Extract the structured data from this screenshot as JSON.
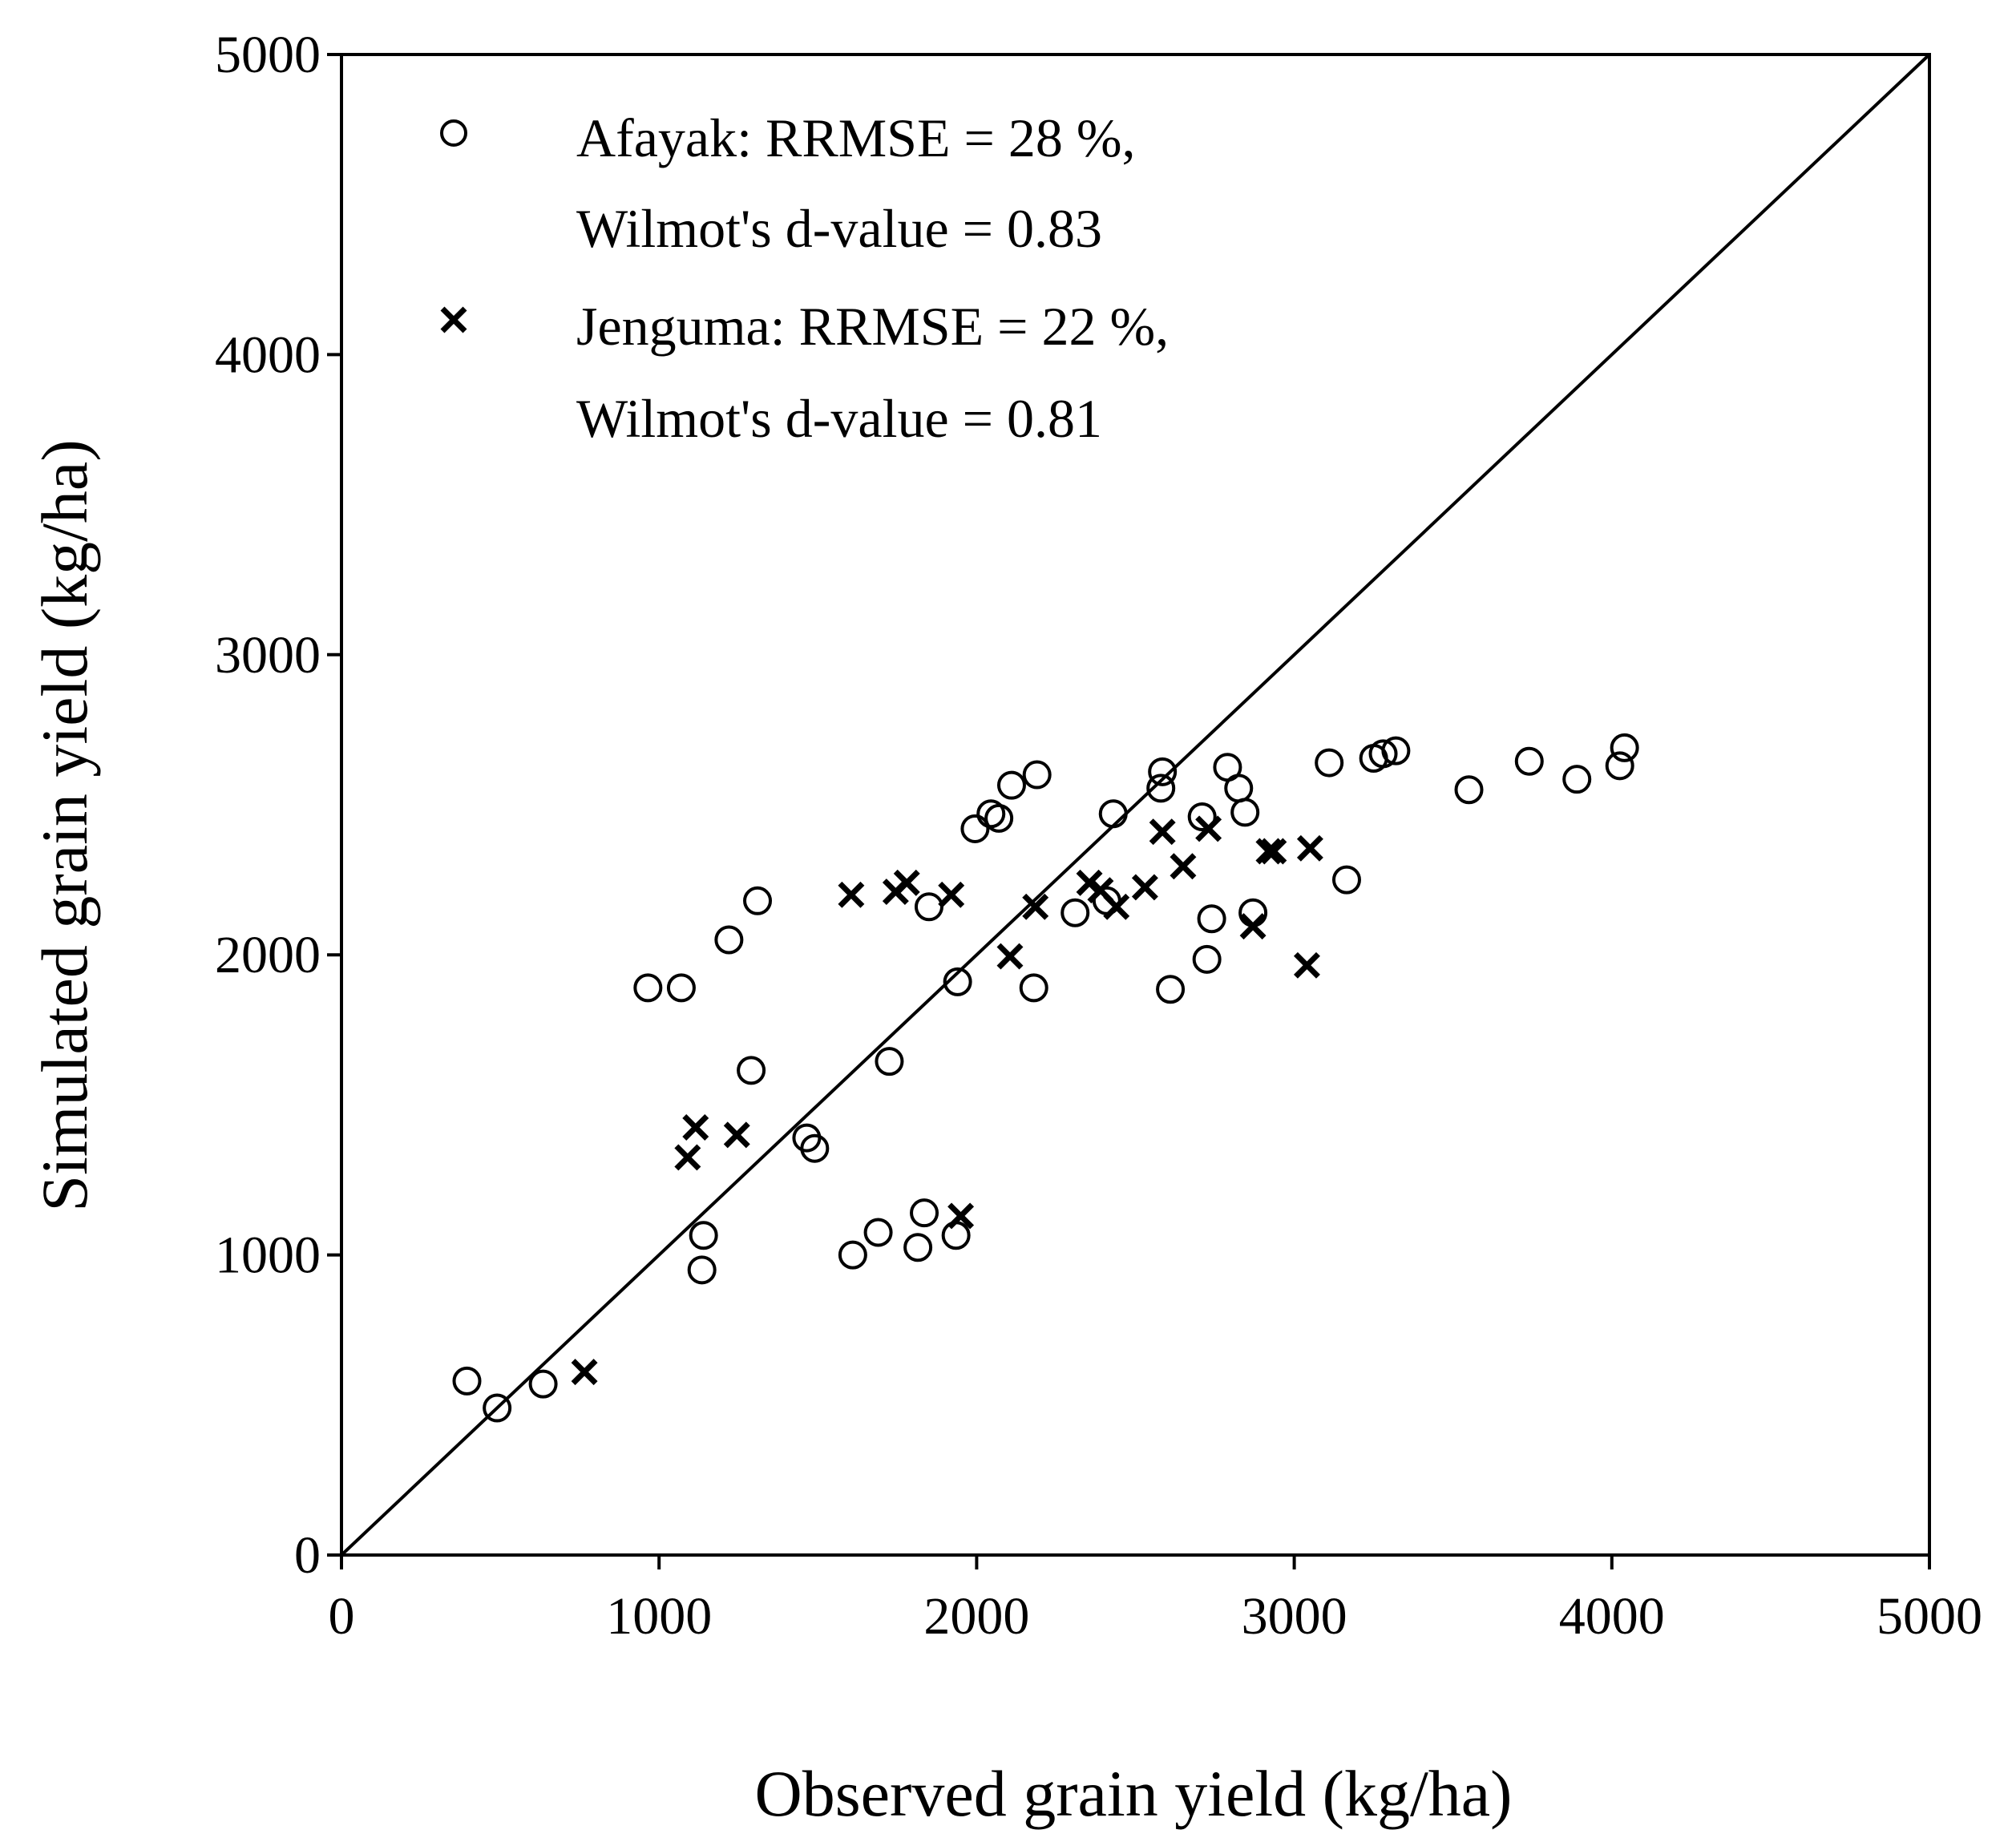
{
  "chart_data": {
    "type": "scatter",
    "title": "",
    "xlabel": "Observed grain yield (kg/ha)",
    "ylabel": "Simulated grain yield (kg/ha)",
    "xlim": [
      0,
      5000
    ],
    "ylim": [
      0,
      5000
    ],
    "xticks": [
      0,
      1000,
      2000,
      3000,
      4000,
      5000
    ],
    "yticks": [
      0,
      1000,
      2000,
      3000,
      4000,
      5000
    ],
    "xtick_labels": [
      "0",
      "1000",
      "2000",
      "3000",
      "4000",
      "5000"
    ],
    "ytick_labels": [
      "0",
      "1000",
      "2000",
      "3000",
      "4000",
      "5000"
    ],
    "grid": false,
    "reference_line": {
      "type": "1:1",
      "from": [
        0,
        0
      ],
      "to": [
        5000,
        5000
      ]
    },
    "legend": {
      "position": "top-left",
      "entries": [
        {
          "series": "Afayak",
          "marker": "circle",
          "line1": "Afayak: RRMSE = 28 %,",
          "line2": "Wilmot's d-value = 0.83"
        },
        {
          "series": "Jenguma",
          "marker": "x",
          "line1": "Jenguma: RRMSE = 22 %,",
          "line2": "Wilmot's d-value = 0.81"
        }
      ]
    },
    "series": [
      {
        "name": "Afayak",
        "marker": "circle",
        "points": [
          [
            395,
            580
          ],
          [
            490,
            490
          ],
          [
            635,
            570
          ],
          [
            965,
            1890
          ],
          [
            1070,
            1890
          ],
          [
            1135,
            950
          ],
          [
            1140,
            1065
          ],
          [
            1220,
            2050
          ],
          [
            1290,
            1615
          ],
          [
            1310,
            2180
          ],
          [
            1465,
            1390
          ],
          [
            1490,
            1355
          ],
          [
            1610,
            1000
          ],
          [
            1690,
            1075
          ],
          [
            1725,
            1645
          ],
          [
            1815,
            1025
          ],
          [
            1835,
            1140
          ],
          [
            1850,
            2160
          ],
          [
            1935,
            1065
          ],
          [
            1940,
            1910
          ],
          [
            1995,
            2420
          ],
          [
            2045,
            2470
          ],
          [
            2070,
            2455
          ],
          [
            2110,
            2565
          ],
          [
            2180,
            1890
          ],
          [
            2190,
            2600
          ],
          [
            2310,
            2140
          ],
          [
            2410,
            2180
          ],
          [
            2430,
            2470
          ],
          [
            2580,
            2555
          ],
          [
            2585,
            2610
          ],
          [
            2610,
            1885
          ],
          [
            2710,
            2460
          ],
          [
            2725,
            1985
          ],
          [
            2740,
            2120
          ],
          [
            2790,
            2625
          ],
          [
            2825,
            2555
          ],
          [
            2845,
            2475
          ],
          [
            2870,
            2140
          ],
          [
            3110,
            2640
          ],
          [
            3165,
            2250
          ],
          [
            3250,
            2655
          ],
          [
            3280,
            2670
          ],
          [
            3320,
            2680
          ],
          [
            3550,
            2550
          ],
          [
            3740,
            2645
          ],
          [
            3890,
            2585
          ],
          [
            4025,
            2630
          ],
          [
            4040,
            2690
          ]
        ]
      },
      {
        "name": "Jenguma",
        "marker": "x",
        "points": [
          [
            765,
            610
          ],
          [
            1090,
            1325
          ],
          [
            1115,
            1425
          ],
          [
            1245,
            1400
          ],
          [
            1605,
            2200
          ],
          [
            1745,
            2210
          ],
          [
            1780,
            2240
          ],
          [
            1920,
            2200
          ],
          [
            1950,
            1130
          ],
          [
            2105,
            1995
          ],
          [
            2185,
            2160
          ],
          [
            2355,
            2240
          ],
          [
            2390,
            2215
          ],
          [
            2440,
            2160
          ],
          [
            2530,
            2225
          ],
          [
            2585,
            2410
          ],
          [
            2650,
            2295
          ],
          [
            2730,
            2420
          ],
          [
            2870,
            2095
          ],
          [
            2920,
            2345
          ],
          [
            2935,
            2345
          ],
          [
            3040,
            1965
          ],
          [
            3050,
            2355
          ]
        ]
      }
    ]
  }
}
